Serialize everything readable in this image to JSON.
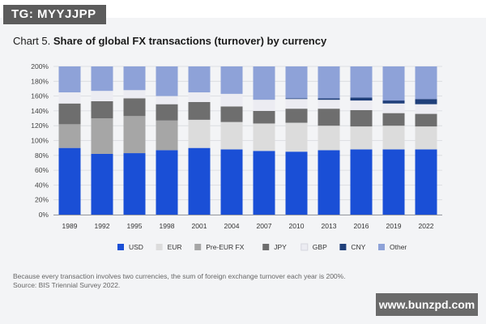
{
  "tag": "TG: MYYJJPP",
  "title": {
    "prefix": "Chart 5. ",
    "main": "Share of global FX transactions (turnover) by currency"
  },
  "footnote": {
    "line1": "Because every transaction involves two currencies, the sum of foreign exchange turnover each year is 200%.",
    "line2": "Source: BIS Triennial Survey 2022."
  },
  "watermark": "www.bunzpd.com",
  "chart_data": {
    "type": "bar",
    "stacked": true,
    "title": "Share of global FX transactions (turnover) by currency",
    "xlabel": "",
    "ylabel": "",
    "ylim": [
      0,
      200
    ],
    "yticks": [
      0,
      20,
      40,
      60,
      80,
      100,
      120,
      140,
      160,
      180,
      200
    ],
    "ytick_labels": [
      "0%",
      "20%",
      "40%",
      "60%",
      "80%",
      "100%",
      "120%",
      "140%",
      "160%",
      "180%",
      "200%"
    ],
    "categories": [
      "1989",
      "1992",
      "1995",
      "1998",
      "2001",
      "2004",
      "2007",
      "2010",
      "2013",
      "2016",
      "2019",
      "2022"
    ],
    "legend_position": "bottom",
    "series": [
      {
        "name": "USD",
        "color": "#1a4fd6",
        "values": [
          90,
          82,
          83,
          87,
          90,
          88,
          86,
          85,
          87,
          88,
          88,
          88
        ]
      },
      {
        "name": "EUR",
        "color": "#dcdcdc",
        "values": [
          0,
          0,
          0,
          0,
          38,
          37,
          37,
          39,
          33,
          31,
          32,
          31
        ]
      },
      {
        "name": "Pre-EUR FX",
        "color": "#a6a6a6",
        "values": [
          32,
          48,
          50,
          40,
          0,
          0,
          0,
          0,
          0,
          0,
          0,
          0
        ]
      },
      {
        "name": "JPY",
        "color": "#6e6e6e",
        "values": [
          28,
          23,
          24,
          22,
          24,
          21,
          17,
          19,
          23,
          22,
          17,
          17
        ]
      },
      {
        "name": "GBP",
        "color": "#ececf2",
        "values": [
          15,
          14,
          11,
          11,
          13,
          17,
          15,
          13,
          12,
          13,
          13,
          13
        ]
      },
      {
        "name": "CNY",
        "color": "#1f3f7a",
        "values": [
          0,
          0,
          0,
          0,
          0,
          0,
          0,
          1,
          2,
          4,
          4,
          7
        ]
      },
      {
        "name": "Other",
        "color": "#8ea2d8",
        "values": [
          35,
          33,
          32,
          40,
          35,
          37,
          45,
          43,
          43,
          42,
          46,
          44
        ]
      }
    ]
  }
}
